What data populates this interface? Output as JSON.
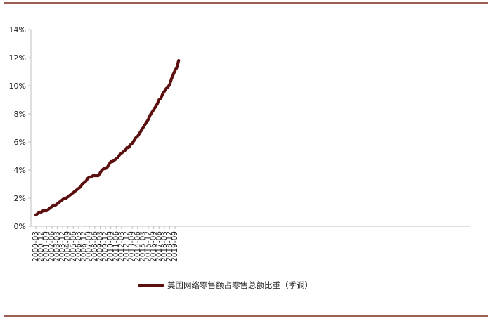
{
  "chart_data": {
    "type": "line",
    "title": "",
    "xlabel": "",
    "ylabel": "",
    "ylim": [
      0,
      14
    ],
    "yticks": [
      "0%",
      "2%",
      "4%",
      "6%",
      "8%",
      "10%",
      "12%",
      "14%"
    ],
    "ytick_values": [
      0,
      2,
      4,
      6,
      8,
      10,
      12,
      14
    ],
    "xtick_labels": [
      "2000-03",
      "2000-12",
      "2001-09",
      "2002-06",
      "2003-03",
      "2003-12",
      "2004-09",
      "2005-06",
      "2006-03",
      "2006-12",
      "2007-09",
      "2008-06",
      "2009-03",
      "2009-12",
      "2010-09",
      "2011-06",
      "2012-03",
      "2012-12",
      "2013-09",
      "2014-06",
      "2015-03",
      "2015-12",
      "2016-09",
      "2017-06",
      "2018-03",
      "2018-12",
      "2019-09"
    ],
    "grid": false,
    "legend_position": "bottom-center",
    "line_color": "#5b0f0f",
    "frame_color": "#7a2a1c",
    "series": [
      {
        "name": "美国网络零售额占零售总额比重（季调）",
        "values": [
          0.8,
          0.9,
          1.0,
          1.0,
          1.1,
          1.1,
          1.1,
          1.2,
          1.3,
          1.4,
          1.5,
          1.5,
          1.6,
          1.7,
          1.8,
          1.9,
          2.0,
          2.0,
          2.1,
          2.2,
          2.3,
          2.4,
          2.5,
          2.6,
          2.7,
          2.8,
          3.0,
          3.1,
          3.2,
          3.4,
          3.5,
          3.5,
          3.6,
          3.6,
          3.6,
          3.6,
          3.8,
          4.0,
          4.1,
          4.1,
          4.2,
          4.4,
          4.6,
          4.6,
          4.7,
          4.8,
          4.9,
          5.1,
          5.2,
          5.3,
          5.4,
          5.6,
          5.6,
          5.8,
          5.9,
          6.1,
          6.3,
          6.4,
          6.6,
          6.8,
          7.0,
          7.2,
          7.4,
          7.6,
          7.9,
          8.1,
          8.3,
          8.5,
          8.7,
          9.0,
          9.1,
          9.4,
          9.6,
          9.8,
          9.9,
          10.1,
          10.5,
          10.8,
          11.1,
          11.3,
          11.8
        ]
      }
    ]
  }
}
